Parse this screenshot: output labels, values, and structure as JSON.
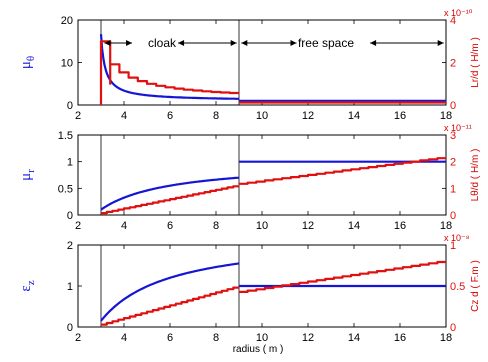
{
  "colors": {
    "blue": "#1515d6",
    "red": "#e01010",
    "axis": "#000000"
  },
  "annotations": {
    "cloak": "cloak",
    "free_space": "free space"
  },
  "xlabel": "radius ( m )",
  "chart_data": [
    {
      "type": "line",
      "xlim": [
        2,
        18
      ],
      "xticks": [
        2,
        4,
        6,
        8,
        10,
        12,
        14,
        16,
        18
      ],
      "left_ylabel": "μθ",
      "left_ylabel_main": "μ",
      "left_ylabel_sub": "θ",
      "ylim_left": [
        0,
        20
      ],
      "yticks_left": [
        "0",
        "10",
        "20"
      ],
      "right_ylabel": "Lr/d ( H/m )",
      "right_exponent": "x 10⁻¹⁰",
      "ylim_right": [
        0,
        4
      ],
      "yticks_right": [
        "0",
        "2",
        "4"
      ],
      "series": [
        {
          "axis": "left",
          "color": "blue",
          "kind": "mu_theta",
          "a": 3,
          "b": 9,
          "x_start": 3,
          "x_end": 18
        },
        {
          "axis": "right",
          "color": "red",
          "kind": "L_r_staircase",
          "x_start": 3,
          "x_end": 18,
          "peak": 3.0,
          "floor": 0.5
        }
      ]
    },
    {
      "type": "line",
      "xlim": [
        2,
        18
      ],
      "xticks": [
        2,
        4,
        6,
        8,
        10,
        12,
        14,
        16,
        18
      ],
      "left_ylabel": "μr",
      "left_ylabel_main": "μ",
      "left_ylabel_sub": "r",
      "ylim_left": [
        0,
        1.5
      ],
      "yticks_left": [
        "0",
        "0.5",
        "1",
        "1.5"
      ],
      "right_ylabel": "Lθ/d ( H/m )",
      "right_exponent": "x 10⁻¹¹",
      "ylim_right": [
        0,
        3
      ],
      "yticks_right": [
        "0",
        "1",
        "2",
        "3"
      ],
      "series": [
        {
          "axis": "left",
          "color": "blue",
          "kind": "mu_r",
          "a": 3,
          "b": 9,
          "x_start": 3,
          "x_end": 18
        },
        {
          "axis": "right",
          "color": "red",
          "kind": "L_theta_staircase",
          "x_start": 3,
          "x_end": 18,
          "cloak_start": 0.05,
          "cloak_end": 1.1,
          "free_start": 1.15,
          "free_end": 2.15
        }
      ]
    },
    {
      "type": "line",
      "xlim": [
        2,
        18
      ],
      "xticks": [
        2,
        4,
        6,
        8,
        10,
        12,
        14,
        16,
        18
      ],
      "left_ylabel": "εz",
      "left_ylabel_main": "ε",
      "left_ylabel_sub": "z",
      "ylim_left": [
        0,
        2
      ],
      "yticks_left": [
        "0",
        "1",
        "2"
      ],
      "right_ylabel": "Cz d ( F.m )",
      "right_exponent": "x 10⁻⁸",
      "ylim_right": [
        0,
        1
      ],
      "yticks_right": [
        "0",
        "0.5",
        "1"
      ],
      "series": [
        {
          "axis": "left",
          "color": "blue",
          "kind": "eps_z",
          "a": 3,
          "b": 9,
          "x_start": 3,
          "x_end": 18
        },
        {
          "axis": "right",
          "color": "red",
          "kind": "C_z_staircase",
          "x_start": 3,
          "x_end": 18,
          "cloak_start": 0.02,
          "cloak_end": 0.49,
          "free_start": 0.42,
          "free_end": 0.8
        }
      ]
    }
  ]
}
